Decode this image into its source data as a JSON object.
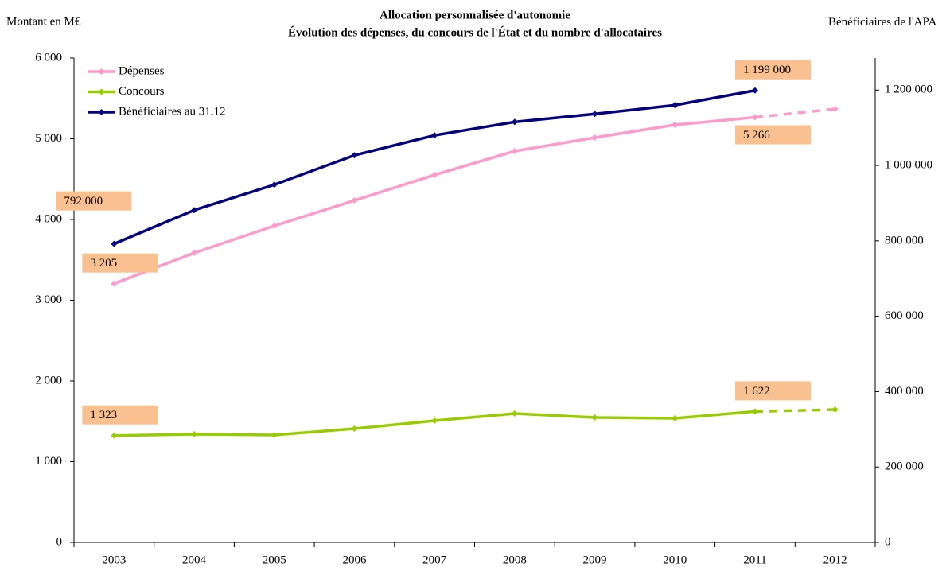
{
  "chart_data": {
    "type": "line",
    "title": "Allocation personnalisée d'autonomie",
    "subtitle": "Évolution des dépenses, du concours de l'État et du nombre d'allocataires",
    "y_label": "Montant en M€",
    "y2_label": "Bénéficiaires de l'APA",
    "categories": [
      "2003",
      "2004",
      "2005",
      "2006",
      "2007",
      "2008",
      "2009",
      "2010",
      "2011",
      "2012"
    ],
    "dash_from": 8,
    "series": [
      {
        "name": "Dépenses",
        "color": "#ff99cc",
        "values": [
          3205,
          3586,
          3921,
          4236,
          4552,
          4847,
          5015,
          5172,
          5266,
          5369
        ],
        "value_labels": [
          "3 205",
          null,
          null,
          null,
          null,
          null,
          null,
          null,
          "5 266",
          null
        ]
      },
      {
        "name": "Concours",
        "color": "#99cc00",
        "values": [
          1323,
          1340,
          1330,
          1409,
          1507,
          1596,
          1547,
          1537,
          1622,
          1645
        ],
        "value_labels": [
          "1 323",
          null,
          null,
          null,
          null,
          null,
          null,
          null,
          "1 622",
          null
        ]
      },
      {
        "name": "Bénéficiaires au 31.12",
        "color": "#000080",
        "axis": "y2",
        "values": [
          792000,
          881500,
          949000,
          1027000,
          1080000,
          1115500,
          1136700,
          1160000,
          1199000,
          null
        ],
        "value_labels": [
          "792 000",
          null,
          null,
          null,
          null,
          null,
          null,
          null,
          "1 199 000",
          null
        ]
      }
    ],
    "ylim": [
      0,
      6000
    ],
    "yticks": [
      0,
      {
        "value": 1000,
        "label": "1 000"
      },
      {
        "value": 2000,
        "label": "2 000"
      },
      {
        "value": 3000,
        "label": "3 000"
      },
      {
        "value": 4000,
        "label": "4 000"
      },
      {
        "value": 5000,
        "label": "5 000"
      },
      {
        "value": 6000,
        "label": "6 000"
      }
    ],
    "y2lim": [
      0,
      1285000
    ],
    "y2ticks": [
      0,
      {
        "value": 200000,
        "label": "200 000"
      },
      {
        "value": 400000,
        "label": "400 000"
      },
      {
        "value": 600000,
        "label": "600 000"
      },
      {
        "value": 800000,
        "label": "800 000"
      },
      {
        "value": 1000000,
        "label": "1 000 000"
      },
      {
        "value": 1200000,
        "label": "1 200 000"
      }
    ],
    "legend": "top-left",
    "label_color": "#fac090"
  }
}
